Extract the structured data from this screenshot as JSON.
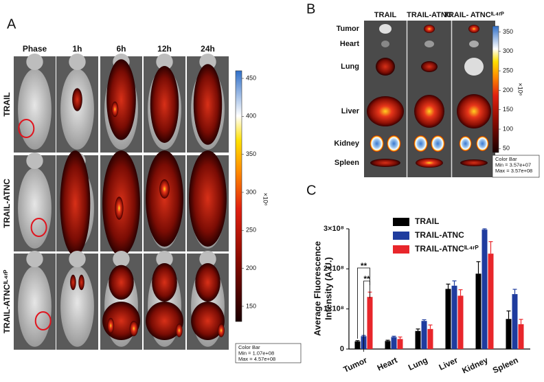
{
  "panel_a": {
    "label": "A",
    "columns": [
      "Phase",
      "1h",
      "6h",
      "12h",
      "24h"
    ],
    "rows": [
      "TRAIL",
      "TRAIL-ATNC",
      "TRAIL-ATNCᴵᴸ⁴ʳᴾ"
    ],
    "colorbar": {
      "clim": [
        130,
        460
      ],
      "ticks": [
        150,
        200,
        250,
        300,
        350,
        400,
        450
      ],
      "unit": "×10⁶",
      "box": [
        "Color Bar",
        "Min = 1.07e+08",
        "Max = 4.57e+08"
      ]
    }
  },
  "panel_b": {
    "label": "B",
    "columns": [
      "TRAIL",
      "TRAIL-ATNC",
      "TRAIL- ATNCᴵᴸ⁴ʳᴾ"
    ],
    "rows": [
      "Tumor",
      "Heart",
      "Lung",
      "Liver",
      "Kidney",
      "Spleen"
    ],
    "colorbar": {
      "clim": [
        40,
        365
      ],
      "ticks": [
        50,
        100,
        150,
        200,
        250,
        300,
        350
      ],
      "unit": "×10⁶",
      "box": [
        "Color Bar",
        "Min = 3.57e+07",
        "Max = 3.57e+08"
      ]
    }
  },
  "chart_data": {
    "type": "bar",
    "panel_label": "C",
    "ylabel": [
      "Average Fluorescence",
      "Intensity (A.U.)"
    ],
    "categories": [
      "Tumor",
      "Heart",
      "Lung",
      "Liver",
      "Kidney",
      "Spleen"
    ],
    "series": [
      {
        "name": "TRAIL",
        "color": "#000000",
        "values": [
          19000000,
          20000000,
          45000000,
          150000000,
          188000000,
          75000000
        ],
        "errors": [
          2000000,
          2000000,
          5000000,
          12000000,
          30000000,
          20000000
        ]
      },
      {
        "name": "TRAIL-ATNC",
        "color": "#1f3c9e",
        "values": [
          32000000,
          30000000,
          70000000,
          158000000,
          298000000,
          137000000
        ],
        "errors": [
          2000000,
          2000000,
          3000000,
          12000000,
          2000000,
          12000000
        ]
      },
      {
        "name": "TRAIL-ATNCᴵᴸ⁴ʳᴾ",
        "color": "#e8262b",
        "values": [
          130000000,
          25000000,
          50000000,
          133000000,
          238000000,
          62000000
        ],
        "errors": [
          12000000,
          5000000,
          10000000,
          15000000,
          30000000,
          12000000
        ]
      }
    ],
    "ylim": [
      0,
      300000000
    ],
    "yticks": [
      0,
      {
        "value": 100000000,
        "label": "1×10⁸"
      },
      {
        "value": 200000000,
        "label": "2×10⁸"
      },
      {
        "value": 300000000,
        "label": "3×10⁸"
      }
    ],
    "annotations": [
      "**",
      "**"
    ]
  }
}
